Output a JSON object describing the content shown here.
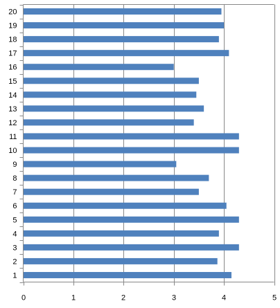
{
  "chart_data": {
    "type": "bar",
    "orientation": "horizontal",
    "title": "",
    "xlabel": "",
    "ylabel": "",
    "categories": [
      "1",
      "2",
      "3",
      "4",
      "5",
      "6",
      "7",
      "8",
      "9",
      "10",
      "11",
      "12",
      "13",
      "14",
      "15",
      "16",
      "17",
      "18",
      "19",
      "20"
    ],
    "values": [
      4.15,
      3.87,
      4.3,
      3.9,
      4.3,
      4.05,
      3.5,
      3.7,
      3.05,
      4.3,
      4.3,
      3.4,
      3.6,
      3.45,
      3.5,
      3.0,
      4.1,
      3.9,
      4.0,
      3.95
    ],
    "xlim": [
      0,
      5
    ],
    "xticks": [
      0,
      1,
      2,
      3,
      4,
      5
    ],
    "grid": "vertical major",
    "legend": "none",
    "colors": {
      "bar": "#4F81BD",
      "grid": "#888888",
      "axis": "#888888"
    }
  }
}
